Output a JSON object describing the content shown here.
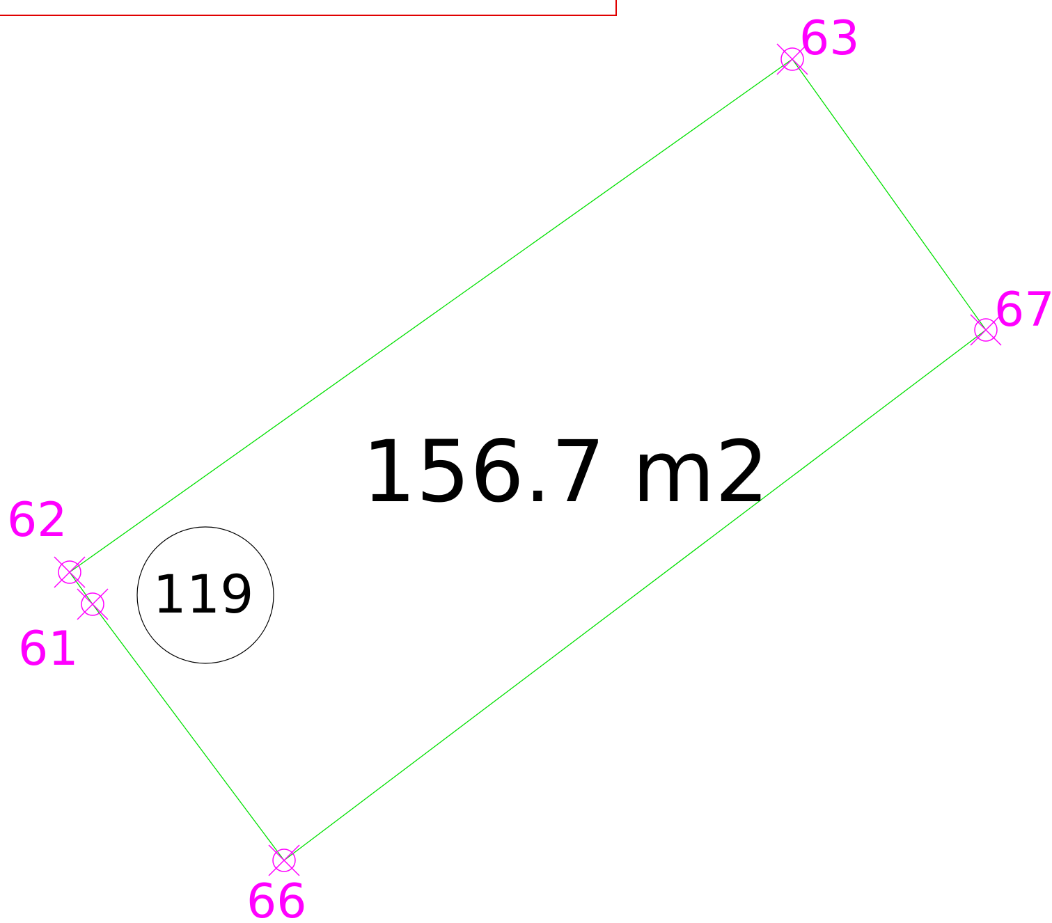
{
  "parcel": {
    "number": "119",
    "area": "156.7 m2"
  },
  "points": [
    {
      "label": "62"
    },
    {
      "label": "61"
    },
    {
      "label": "63"
    },
    {
      "label": "67"
    },
    {
      "label": "66"
    }
  ]
}
